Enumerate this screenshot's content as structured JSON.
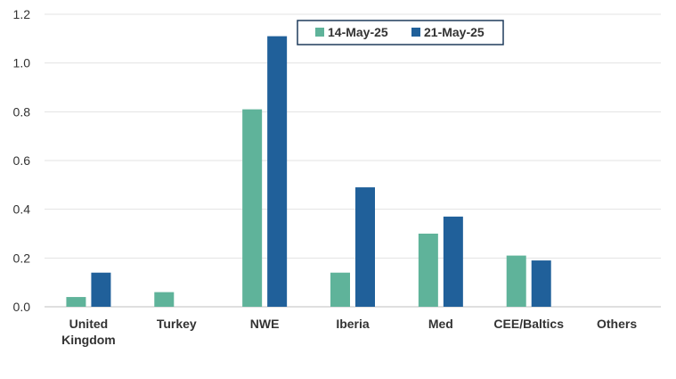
{
  "chart_data": {
    "type": "bar",
    "categories": [
      "United\nKingdom",
      "Turkey",
      "NWE",
      "Iberia",
      "Med",
      "CEE/Baltics",
      "Others"
    ],
    "series": [
      {
        "name": "14-May-25",
        "color": "#5fb39a",
        "values": [
          0.04,
          0.06,
          0.81,
          0.14,
          0.3,
          0.21,
          0
        ]
      },
      {
        "name": "21-May-25",
        "color": "#20609a",
        "values": [
          0.14,
          0,
          1.11,
          0.49,
          0.37,
          0.19,
          0
        ]
      }
    ],
    "yticks": [
      "0.0",
      "0.2",
      "0.4",
      "0.6",
      "0.8",
      "1.0",
      "1.2"
    ],
    "ylim": [
      0,
      1.2
    ],
    "grid": true,
    "legend": "top-center"
  }
}
